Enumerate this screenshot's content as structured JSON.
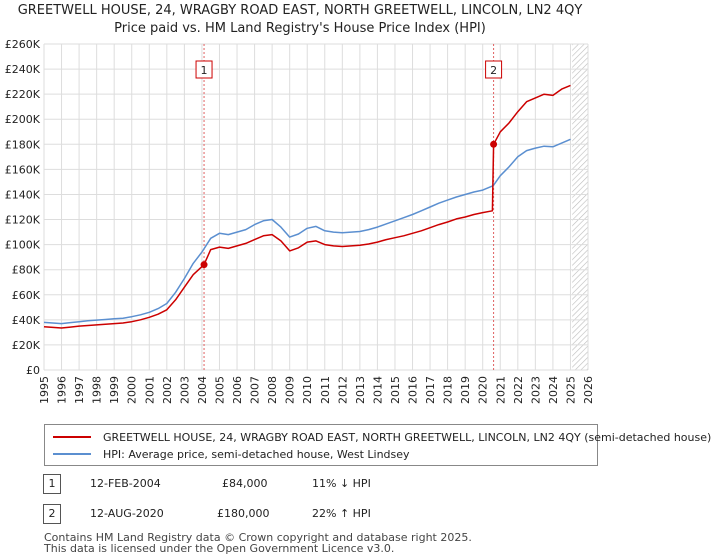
{
  "title": {
    "line1": "GREETWELL HOUSE, 24, WRAGBY ROAD EAST, NORTH GREETWELL, LINCOLN, LN2 4QY",
    "line2": "Price paid vs. HM Land Registry's House Price Index (HPI)"
  },
  "chart_data": {
    "type": "line",
    "x_unit": "year",
    "xlim": [
      1995,
      2026
    ],
    "ylim": [
      0,
      260000
    ],
    "x_ticks": [
      1995,
      1996,
      1997,
      1998,
      1999,
      2000,
      2001,
      2002,
      2003,
      2004,
      2005,
      2006,
      2007,
      2008,
      2009,
      2010,
      2011,
      2012,
      2013,
      2014,
      2015,
      2016,
      2017,
      2018,
      2019,
      2020,
      2021,
      2022,
      2023,
      2024,
      2025,
      2026
    ],
    "y_ticks": [
      {
        "value": 0,
        "label": "£0"
      },
      {
        "value": 20000,
        "label": "£20K"
      },
      {
        "value": 40000,
        "label": "£40K"
      },
      {
        "value": 60000,
        "label": "£60K"
      },
      {
        "value": 80000,
        "label": "£80K"
      },
      {
        "value": 100000,
        "label": "£100K"
      },
      {
        "value": 120000,
        "label": "£120K"
      },
      {
        "value": 140000,
        "label": "£140K"
      },
      {
        "value": 160000,
        "label": "£160K"
      },
      {
        "value": 180000,
        "label": "£180K"
      },
      {
        "value": 200000,
        "label": "£200K"
      },
      {
        "value": 220000,
        "label": "£220K"
      },
      {
        "value": 240000,
        "label": "£240K"
      },
      {
        "value": 260000,
        "label": "£260K"
      }
    ],
    "grid": true,
    "future_shade_from": 2025.1,
    "series": [
      {
        "name": "GREETWELL HOUSE, 24, WRAGBY ROAD EAST, NORTH GREETWELL, LINCOLN, LN2 4QY (semi-detached house)",
        "color": "#cc0000",
        "points": [
          [
            1995.0,
            34500
          ],
          [
            1995.5,
            34000
          ],
          [
            1996.0,
            33500
          ],
          [
            1996.5,
            34200
          ],
          [
            1997.0,
            35000
          ],
          [
            1997.5,
            35500
          ],
          [
            1998.0,
            36000
          ],
          [
            1998.5,
            36500
          ],
          [
            1999.0,
            37000
          ],
          [
            1999.5,
            37500
          ],
          [
            2000.0,
            38500
          ],
          [
            2000.5,
            40000
          ],
          [
            2001.0,
            42000
          ],
          [
            2001.5,
            44500
          ],
          [
            2002.0,
            48000
          ],
          [
            2002.5,
            56000
          ],
          [
            2003.0,
            66000
          ],
          [
            2003.5,
            76000
          ],
          [
            2004.12,
            84000
          ],
          [
            2004.5,
            96000
          ],
          [
            2005.0,
            98000
          ],
          [
            2005.5,
            97000
          ],
          [
            2006.0,
            99000
          ],
          [
            2006.5,
            101000
          ],
          [
            2007.0,
            104000
          ],
          [
            2007.5,
            107000
          ],
          [
            2008.0,
            108000
          ],
          [
            2008.5,
            103000
          ],
          [
            2009.0,
            95000
          ],
          [
            2009.5,
            97500
          ],
          [
            2010.0,
            102000
          ],
          [
            2010.5,
            103000
          ],
          [
            2011.0,
            100000
          ],
          [
            2011.5,
            99000
          ],
          [
            2012.0,
            98500
          ],
          [
            2012.5,
            99000
          ],
          [
            2013.0,
            99500
          ],
          [
            2013.5,
            100500
          ],
          [
            2014.0,
            102000
          ],
          [
            2014.5,
            104000
          ],
          [
            2015.0,
            105500
          ],
          [
            2015.5,
            107000
          ],
          [
            2016.0,
            109000
          ],
          [
            2016.5,
            111000
          ],
          [
            2017.0,
            113500
          ],
          [
            2017.5,
            116000
          ],
          [
            2018.0,
            118000
          ],
          [
            2018.5,
            120500
          ],
          [
            2019.0,
            122000
          ],
          [
            2019.5,
            124000
          ],
          [
            2020.0,
            125500
          ],
          [
            2020.55,
            127000
          ],
          [
            2020.62,
            180000
          ],
          [
            2021.0,
            190000
          ],
          [
            2021.5,
            197000
          ],
          [
            2022.0,
            206000
          ],
          [
            2022.5,
            214000
          ],
          [
            2023.0,
            217000
          ],
          [
            2023.5,
            220000
          ],
          [
            2024.0,
            219000
          ],
          [
            2024.5,
            224000
          ],
          [
            2025.0,
            227000
          ]
        ]
      },
      {
        "name": "HPI: Average price, semi-detached house, West Lindsey",
        "color": "#5b8fd0",
        "points": [
          [
            1995.0,
            38000
          ],
          [
            1995.5,
            37500
          ],
          [
            1996.0,
            37000
          ],
          [
            1996.5,
            37800
          ],
          [
            1997.0,
            38500
          ],
          [
            1997.5,
            39200
          ],
          [
            1998.0,
            39800
          ],
          [
            1998.5,
            40300
          ],
          [
            1999.0,
            40800
          ],
          [
            1999.5,
            41300
          ],
          [
            2000.0,
            42500
          ],
          [
            2000.5,
            44000
          ],
          [
            2001.0,
            46000
          ],
          [
            2001.5,
            49000
          ],
          [
            2002.0,
            53000
          ],
          [
            2002.5,
            62000
          ],
          [
            2003.0,
            73000
          ],
          [
            2003.5,
            85000
          ],
          [
            2004.0,
            94000
          ],
          [
            2004.5,
            105000
          ],
          [
            2005.0,
            109000
          ],
          [
            2005.5,
            108000
          ],
          [
            2006.0,
            110000
          ],
          [
            2006.5,
            112000
          ],
          [
            2007.0,
            116000
          ],
          [
            2007.5,
            119000
          ],
          [
            2008.0,
            120000
          ],
          [
            2008.5,
            114000
          ],
          [
            2009.0,
            106000
          ],
          [
            2009.5,
            108500
          ],
          [
            2010.0,
            113000
          ],
          [
            2010.5,
            114500
          ],
          [
            2011.0,
            111000
          ],
          [
            2011.5,
            110000
          ],
          [
            2012.0,
            109500
          ],
          [
            2012.5,
            110000
          ],
          [
            2013.0,
            110500
          ],
          [
            2013.5,
            112000
          ],
          [
            2014.0,
            114000
          ],
          [
            2014.5,
            116500
          ],
          [
            2015.0,
            119000
          ],
          [
            2015.5,
            121500
          ],
          [
            2016.0,
            124000
          ],
          [
            2016.5,
            127000
          ],
          [
            2017.0,
            130000
          ],
          [
            2017.5,
            133000
          ],
          [
            2018.0,
            135500
          ],
          [
            2018.5,
            138000
          ],
          [
            2019.0,
            140000
          ],
          [
            2019.5,
            142000
          ],
          [
            2020.0,
            143500
          ],
          [
            2020.6,
            147000
          ],
          [
            2021.0,
            155000
          ],
          [
            2021.5,
            162000
          ],
          [
            2022.0,
            170000
          ],
          [
            2022.5,
            175000
          ],
          [
            2023.0,
            177000
          ],
          [
            2023.5,
            178500
          ],
          [
            2024.0,
            178000
          ],
          [
            2024.5,
            181000
          ],
          [
            2025.0,
            184000
          ]
        ]
      }
    ],
    "sales": [
      {
        "num": "1",
        "year": 2004.12,
        "value": 84000
      },
      {
        "num": "2",
        "year": 2020.62,
        "value": 180000
      }
    ]
  },
  "legend": {
    "property_label": "GREETWELL HOUSE, 24, WRAGBY ROAD EAST, NORTH GREETWELL, LINCOLN, LN2 4QY (semi-detached house)",
    "hpi_label": "HPI: Average price, semi-detached house, West Lindsey",
    "property_color": "#cc0000",
    "hpi_color": "#5b8fd0"
  },
  "sales_table": [
    {
      "num": "1",
      "date": "12-FEB-2004",
      "price": "£84,000",
      "hpi": "11% ↓ HPI"
    },
    {
      "num": "2",
      "date": "12-AUG-2020",
      "price": "£180,000",
      "hpi": "22% ↑ HPI"
    }
  ],
  "footer": {
    "line1": "Contains HM Land Registry data © Crown copyright and database right 2025.",
    "line2": "This data is licensed under the Open Government Licence v3.0."
  }
}
